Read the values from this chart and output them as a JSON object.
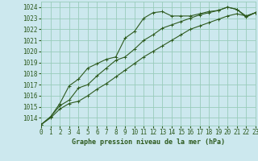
{
  "xlabel": "Graphe pression niveau de la mer (hPa)",
  "bg_color": "#cce8ee",
  "grid_color": "#99ccbb",
  "line_color": "#2d5a1e",
  "xlim": [
    0,
    23
  ],
  "ylim": [
    1013.3,
    1024.5
  ],
  "yticks": [
    1014,
    1015,
    1016,
    1017,
    1018,
    1019,
    1020,
    1021,
    1022,
    1023,
    1024
  ],
  "xticks": [
    0,
    1,
    2,
    3,
    4,
    5,
    6,
    7,
    8,
    9,
    10,
    11,
    12,
    13,
    14,
    15,
    16,
    17,
    18,
    19,
    20,
    21,
    22,
    23
  ],
  "line1_x": [
    0,
    1,
    2,
    3,
    4,
    5,
    6,
    7,
    8,
    9,
    10,
    11,
    12,
    13,
    14,
    15,
    16,
    17,
    18,
    19,
    20,
    21,
    22,
    23
  ],
  "line1_y": [
    1013.4,
    1014.0,
    1014.8,
    1015.3,
    1015.5,
    1016.0,
    1016.6,
    1017.1,
    1017.7,
    1018.3,
    1018.9,
    1019.5,
    1020.0,
    1020.5,
    1021.0,
    1021.5,
    1022.0,
    1022.3,
    1022.6,
    1022.9,
    1023.2,
    1023.4,
    1023.2,
    1023.5
  ],
  "line2_x": [
    0,
    1,
    2,
    3,
    4,
    5,
    6,
    7,
    8,
    9,
    10,
    11,
    12,
    13,
    14,
    15,
    16,
    17,
    18,
    19,
    20,
    21,
    22,
    23
  ],
  "line2_y": [
    1013.4,
    1014.1,
    1015.1,
    1015.6,
    1016.7,
    1017.0,
    1017.8,
    1018.5,
    1019.2,
    1019.5,
    1020.2,
    1021.0,
    1021.5,
    1022.1,
    1022.4,
    1022.7,
    1023.0,
    1023.3,
    1023.5,
    1023.7,
    1024.0,
    1023.8,
    1023.1,
    1023.5
  ],
  "line3_x": [
    0,
    1,
    2,
    3,
    4,
    5,
    6,
    7,
    8,
    9,
    10,
    11,
    12,
    13,
    14,
    15,
    16,
    17,
    18,
    19,
    20,
    21,
    22,
    23
  ],
  "line3_y": [
    1013.4,
    1014.1,
    1015.3,
    1016.9,
    1017.5,
    1018.5,
    1018.9,
    1019.3,
    1019.5,
    1021.2,
    1021.8,
    1023.0,
    1023.5,
    1023.6,
    1023.2,
    1023.2,
    1023.2,
    1023.4,
    1023.6,
    1023.7,
    1024.0,
    1023.8,
    1023.2,
    1023.5
  ],
  "xlabel_fontsize": 6.0,
  "tick_fontsize": 5.5,
  "linewidth": 0.8,
  "markersize": 2.5
}
